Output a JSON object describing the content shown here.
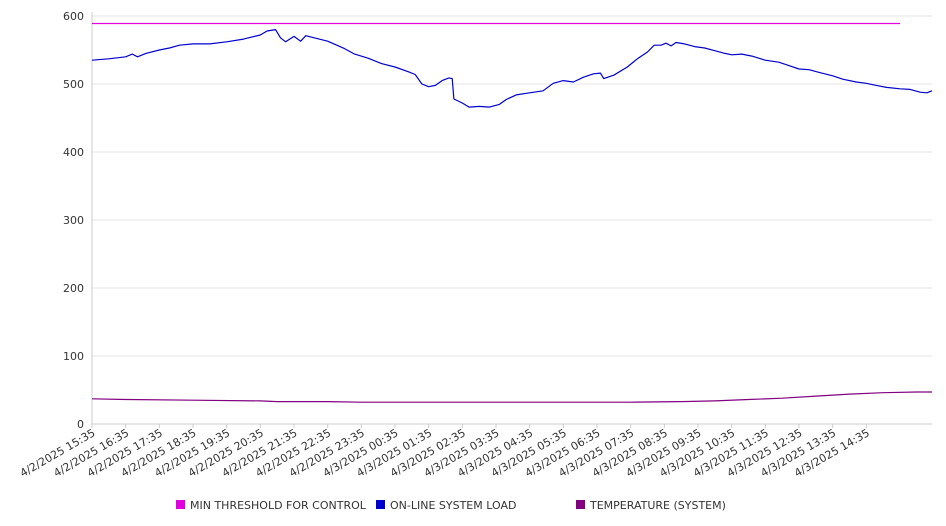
{
  "chart_data": {
    "type": "line",
    "title": "",
    "xlabel": "",
    "ylabel": "",
    "ylim": [
      0,
      600
    ],
    "yticks": [
      0,
      100,
      200,
      300,
      400,
      500,
      600
    ],
    "grid": true,
    "legend_position": "bottom",
    "x_tick_labels": [
      "4/2/2025 15:35",
      "4/2/2025 16:35",
      "4/2/2025 17:35",
      "4/2/2025 18:35",
      "4/2/2025 19:35",
      "4/2/2025 20:35",
      "4/2/2025 21:35",
      "4/2/2025 22:35",
      "4/2/2025 23:35",
      "4/3/2025 00:35",
      "4/3/2025 01:35",
      "4/3/2025 02:35",
      "4/3/2025 03:35",
      "4/3/2025 04:35",
      "4/3/2025 05:35",
      "4/3/2025 06:35",
      "4/3/2025 07:35",
      "4/3/2025 08:35",
      "4/3/2025 09:35",
      "4/3/2025 10:35",
      "4/3/2025 11:35",
      "4/3/2025 12:35",
      "4/3/2025 13:35",
      "4/3/2025 14:35"
    ],
    "x_hours": [
      0,
      24
    ],
    "series": [
      {
        "name": "MIN THRESHOLD FOR CONTROL",
        "color": "#e000e0",
        "points": [
          [
            0,
            589
          ],
          [
            24,
            589
          ]
        ]
      },
      {
        "name": "ON-LINE SYSTEM LOAD",
        "color": "#0000cc",
        "points": [
          [
            0,
            535
          ],
          [
            0.5,
            537
          ],
          [
            1.0,
            540
          ],
          [
            1.2,
            544
          ],
          [
            1.35,
            540
          ],
          [
            1.6,
            545
          ],
          [
            2.0,
            550
          ],
          [
            2.3,
            553
          ],
          [
            2.6,
            557
          ],
          [
            3.0,
            559
          ],
          [
            3.5,
            559
          ],
          [
            4.0,
            562
          ],
          [
            4.5,
            566
          ],
          [
            5.0,
            572
          ],
          [
            5.2,
            578
          ],
          [
            5.45,
            580
          ],
          [
            5.6,
            568
          ],
          [
            5.75,
            562
          ],
          [
            6.0,
            570
          ],
          [
            6.2,
            563
          ],
          [
            6.35,
            571
          ],
          [
            6.6,
            568
          ],
          [
            7.0,
            563
          ],
          [
            7.5,
            552
          ],
          [
            7.8,
            544
          ],
          [
            8.2,
            538
          ],
          [
            8.6,
            530
          ],
          [
            9.0,
            525
          ],
          [
            9.4,
            518
          ],
          [
            9.6,
            514
          ],
          [
            9.8,
            500
          ],
          [
            10.0,
            496
          ],
          [
            10.2,
            498
          ],
          [
            10.4,
            505
          ],
          [
            10.6,
            509
          ],
          [
            10.7,
            508
          ],
          [
            10.75,
            478
          ],
          [
            11.0,
            472
          ],
          [
            11.2,
            466
          ],
          [
            11.5,
            467
          ],
          [
            11.8,
            466
          ],
          [
            12.1,
            470
          ],
          [
            12.3,
            477
          ],
          [
            12.6,
            484
          ],
          [
            13.0,
            487
          ],
          [
            13.4,
            490
          ],
          [
            13.7,
            501
          ],
          [
            14.0,
            505
          ],
          [
            14.3,
            503
          ],
          [
            14.6,
            510
          ],
          [
            14.9,
            515
          ],
          [
            15.1,
            516
          ],
          [
            15.2,
            508
          ],
          [
            15.5,
            513
          ],
          [
            15.9,
            525
          ],
          [
            16.2,
            537
          ],
          [
            16.5,
            547
          ],
          [
            16.7,
            557
          ],
          [
            16.9,
            557
          ],
          [
            17.05,
            560
          ],
          [
            17.2,
            556
          ],
          [
            17.35,
            561
          ],
          [
            17.6,
            559
          ],
          [
            17.9,
            555
          ],
          [
            18.2,
            553
          ],
          [
            18.5,
            549
          ],
          [
            18.8,
            545
          ],
          [
            19.0,
            543
          ],
          [
            19.3,
            544
          ],
          [
            19.6,
            541
          ],
          [
            20.0,
            535
          ],
          [
            20.4,
            532
          ],
          [
            20.7,
            527
          ],
          [
            21.0,
            522
          ],
          [
            21.3,
            521
          ],
          [
            21.6,
            517
          ],
          [
            22.0,
            512
          ],
          [
            22.3,
            507
          ],
          [
            22.7,
            503
          ],
          [
            23.0,
            501
          ],
          [
            23.3,
            498
          ],
          [
            23.6,
            495
          ],
          [
            24.0,
            493
          ],
          [
            24.3,
            492
          ],
          [
            24.6,
            488
          ],
          [
            24.8,
            487
          ],
          [
            24.95,
            490
          ]
        ]
      },
      {
        "name": "TEMPERATURE (SYSTEM)",
        "color": "#800080",
        "points": [
          [
            0,
            37
          ],
          [
            1.0,
            36
          ],
          [
            3.0,
            35
          ],
          [
            5.0,
            34
          ],
          [
            5.5,
            33
          ],
          [
            7.0,
            33
          ],
          [
            8.0,
            32
          ],
          [
            10.0,
            32
          ],
          [
            12.0,
            32
          ],
          [
            14.0,
            32
          ],
          [
            16.0,
            32
          ],
          [
            17.5,
            33
          ],
          [
            18.5,
            34
          ],
          [
            19.5,
            36
          ],
          [
            20.5,
            38
          ],
          [
            21.5,
            41
          ],
          [
            22.5,
            44
          ],
          [
            23.5,
            46
          ],
          [
            24.5,
            47
          ],
          [
            24.95,
            47
          ]
        ]
      }
    ]
  }
}
